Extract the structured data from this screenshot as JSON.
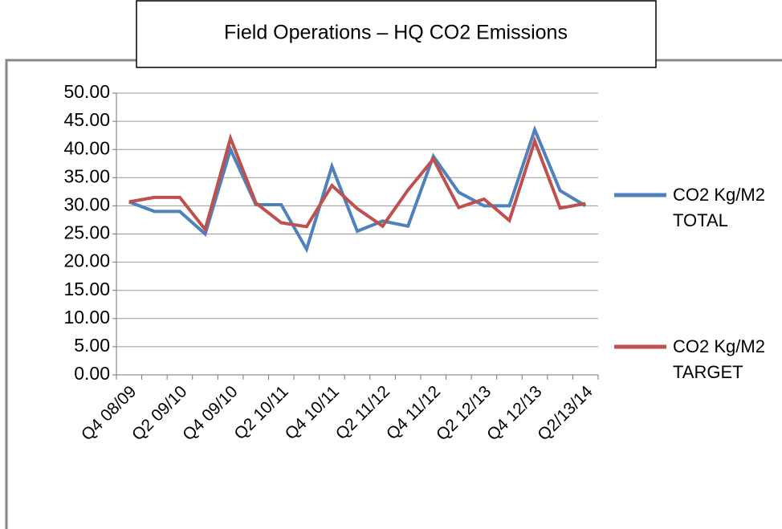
{
  "chart_data": {
    "type": "line",
    "title": "Field Operations – HQ CO2 Emissions",
    "categories": [
      "Q4 08/09",
      null,
      "Q2 09/10",
      null,
      "Q4 09/10",
      null,
      "Q2 10/11",
      null,
      "Q4 10/11",
      null,
      "Q2 11/12",
      null,
      "Q4 11/12",
      null,
      "Q2 12/13",
      null,
      "Q4 12/13",
      null,
      "Q2/13/14"
    ],
    "series": [
      {
        "name": "CO2 Kg/M2 TOTAL",
        "color": "#4f81bd",
        "values": [
          30.7,
          29,
          29,
          25,
          40,
          30.2,
          30.2,
          22.3,
          37,
          25.5,
          27.3,
          26.4,
          38.8,
          32.4,
          30,
          30,
          43.5,
          32.7,
          30
        ]
      },
      {
        "name": "CO2 Kg/M2 TARGET",
        "color": "#c0504d",
        "values": [
          30.7,
          31.5,
          31.5,
          25.8,
          42,
          30.5,
          27,
          26.3,
          33.6,
          29.5,
          26.4,
          32.8,
          38.3,
          29.7,
          31.2,
          27.4,
          41.5,
          29.6,
          30.4
        ]
      }
    ],
    "ylim": [
      0,
      50
    ],
    "yticks": [
      {
        "value": 0,
        "label": "0.00"
      },
      {
        "value": 5,
        "label": "5.00"
      },
      {
        "value": 10,
        "label": "10.00"
      },
      {
        "value": 15,
        "label": "15.00"
      },
      {
        "value": 20,
        "label": "20.00"
      },
      {
        "value": 25,
        "label": "25.00"
      },
      {
        "value": 30,
        "label": "30.00"
      },
      {
        "value": 35,
        "label": "35.00"
      },
      {
        "value": 40,
        "label": "40.00"
      },
      {
        "value": 45,
        "label": "45.00"
      },
      {
        "value": 50,
        "label": "50.00"
      }
    ],
    "grid": true,
    "legend": "right"
  }
}
